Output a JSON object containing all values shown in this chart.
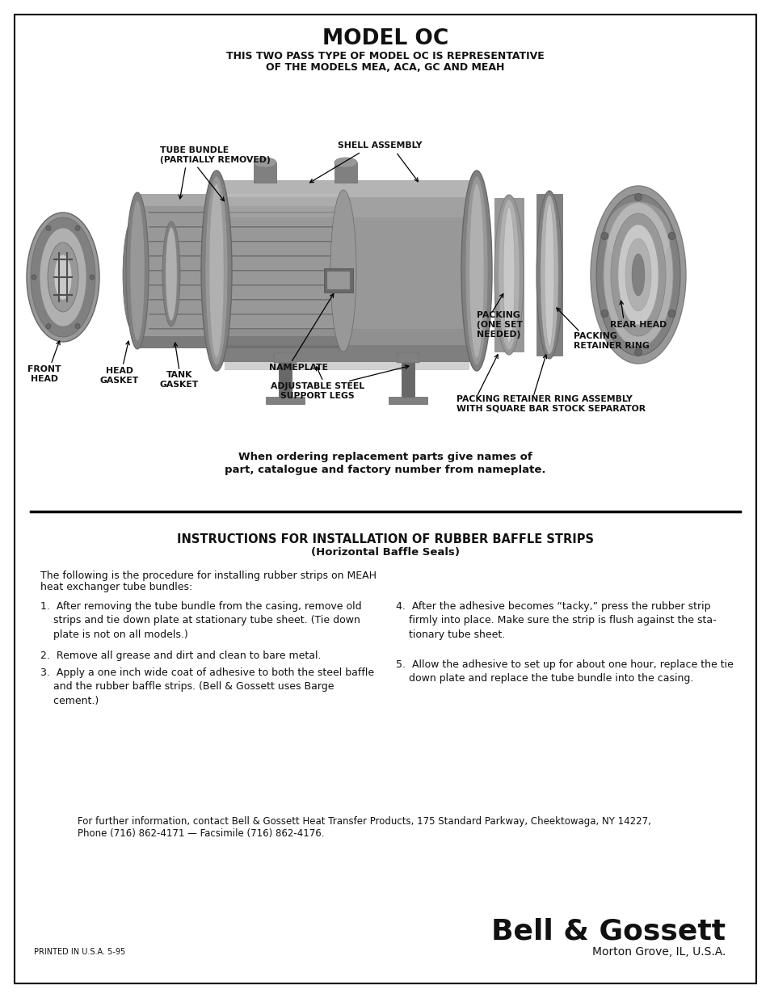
{
  "page_title": "MODEL OC",
  "page_subtitle_line1": "THIS TWO PASS TYPE OF MODEL OC IS REPRESENTATIVE",
  "page_subtitle_line2": "OF THE MODELS MEA, ACA, GC AND MEAH",
  "ordering_note_line1": "When ordering replacement parts give names of",
  "ordering_note_line2": "part, catalogue and factory number from nameplate.",
  "section_title_line1": "INSTRUCTIONS FOR INSTALLATION OF RUBBER BAFFLE STRIPS",
  "section_title_line2": "(Horizontal Baffle Seals)",
  "intro_text_line1": "The following is the procedure for installing rubber strips on MEAH",
  "intro_text_line2": "heat exchanger tube bundles:",
  "step1": "1.  After removing the tube bundle from the casing, remove old\n    strips and tie down plate at stationary tube sheet. (Tie down\n    plate is not on all models.)",
  "step2": "2.  Remove all grease and dirt and clean to bare metal.",
  "step3": "3.  Apply a one inch wide coat of adhesive to both the steel baffle\n    and the rubber baffle strips. (Bell & Gossett uses Barge\n    cement.)",
  "step4": "4.  After the adhesive becomes “tacky,” press the rubber strip\n    firmly into place. Make sure the strip is flush against the sta-\n    tionary tube sheet.",
  "step5": "5.  Allow the adhesive to set up for about one hour, replace the tie\n    down plate and replace the tube bundle into the casing.",
  "contact_line1": "For further information, contact Bell & Gossett Heat Transfer Products, 175 Standard Parkway, Cheektowaga, NY 14227,",
  "contact_line2": "Phone (716) 862-4171 — Facsimile (716) 862-4176.",
  "brand_name": "Bell & Gossett",
  "brand_location": "Morton Grove, IL, U.S.A.",
  "footer_left": "PRINTED IN U.S.A. 5-95",
  "bg_color": "#ffffff",
  "text_color": "#111111",
  "border_color": "#000000",
  "lbl_tube_bundle": "TUBE BUNDLE\n(PARTIALLY REMOVED)",
  "lbl_shell_assembly": "SHELL ASSEMBLY",
  "lbl_front_head": "FRONT\nHEAD",
  "lbl_head_gasket": "HEAD\nGASKET",
  "lbl_tank_gasket": "TANK\nGASKET",
  "lbl_nameplate": "NAMEPLATE",
  "lbl_adjustable_legs": "ADJUSTABLE STEEL\nSUPPORT LEGS",
  "lbl_packing": "PACKING\n(ONE SET\nNEEDED)",
  "lbl_rear_head": "REAR HEAD",
  "lbl_packing_retainer_ring": "PACKING\nRETAINER RING",
  "lbl_packing_retainer_assembly": "PACKING RETAINER RING ASSEMBLY\nWITH SQUARE BAR STOCK SEPARATOR"
}
